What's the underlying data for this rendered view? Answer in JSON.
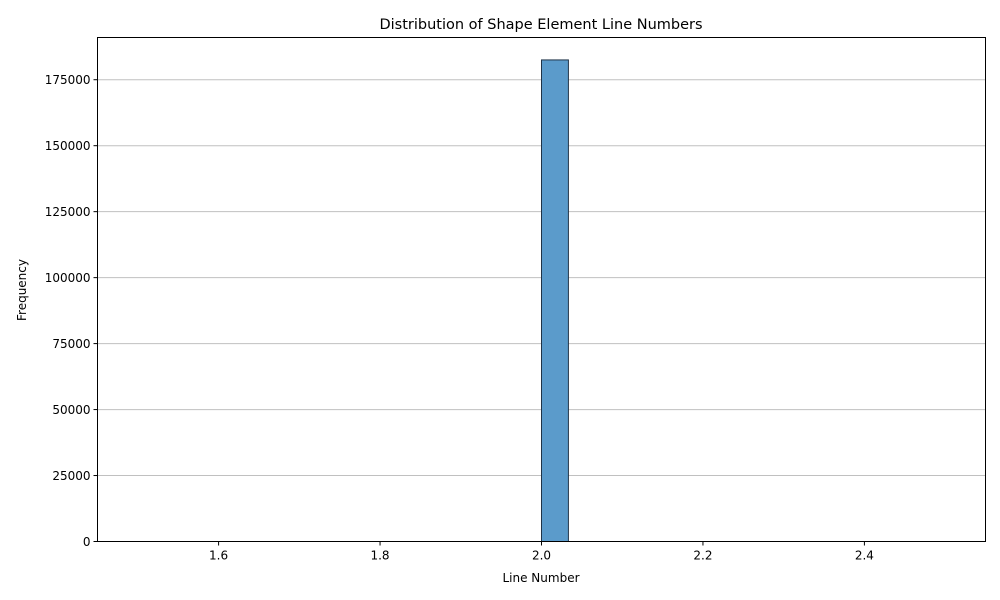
{
  "chart_data": {
    "type": "histogram",
    "title": "Distribution of Shape Element Line Numbers",
    "xlabel": "Line Number",
    "ylabel": "Frequency",
    "xlim": [
      1.45,
      2.55
    ],
    "ylim": [
      0,
      191000
    ],
    "xticks": [
      1.6,
      1.8,
      2.0,
      2.2,
      2.4
    ],
    "xtick_labels": [
      "1.6",
      "1.8",
      "2.0",
      "2.2",
      "2.4"
    ],
    "yticks": [
      0,
      25000,
      50000,
      75000,
      100000,
      125000,
      150000,
      175000
    ],
    "ytick_labels": [
      "0",
      "25000",
      "50000",
      "75000",
      "100000",
      "125000",
      "150000",
      "175000"
    ],
    "grid": "y",
    "bins": {
      "start": 1.5,
      "end": 2.5,
      "count": 30,
      "counts": [
        0,
        0,
        0,
        0,
        0,
        0,
        0,
        0,
        0,
        0,
        0,
        0,
        0,
        0,
        0,
        182500,
        0,
        0,
        0,
        0,
        0,
        0,
        0,
        0,
        0,
        0,
        0,
        0,
        0,
        0
      ]
    },
    "bar_color": "#5b9bcb",
    "bar_edge_color": "#1f3347",
    "grid_color": "#c0c0c0"
  }
}
